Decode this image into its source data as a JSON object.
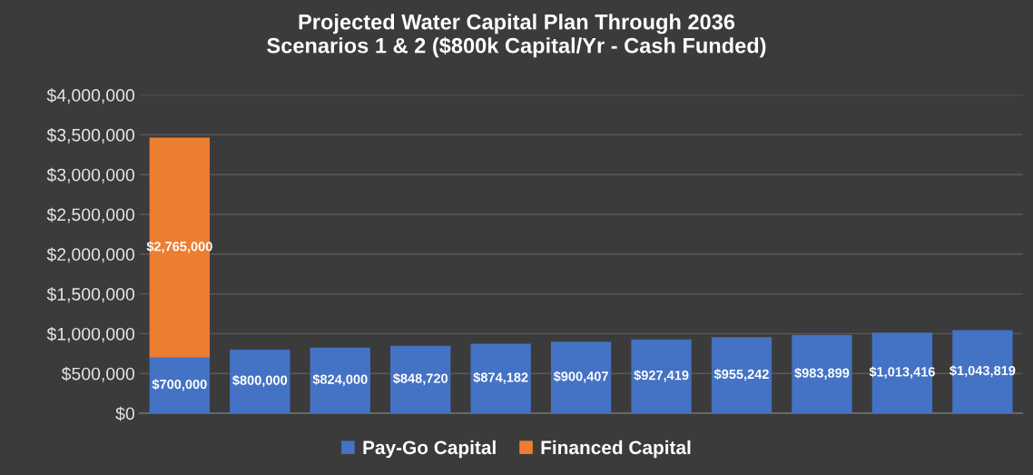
{
  "chart_data": {
    "type": "bar",
    "title": "Projected Water Capital Plan Through 2036\nScenarios 1 & 2 ($800k Capital/Yr - Cash Funded)",
    "categories": [
      null,
      null,
      null,
      null,
      null,
      null,
      null,
      null,
      null,
      null,
      null
    ],
    "stacked": true,
    "series": [
      {
        "name": "Pay-Go Capital",
        "color": "#4472c4",
        "values": [
          700000,
          800000,
          824000,
          848720,
          874182,
          900407,
          927419,
          955242,
          983899,
          1013416,
          1043819
        ],
        "value_labels": [
          "$700,000",
          "$800,000",
          "$824,000",
          "$848,720",
          "$874,182",
          "$900,407",
          "$927,419",
          "$955,242",
          "$983,899",
          "$1,013,416",
          "$1,043,819"
        ]
      },
      {
        "name": "Financed Capital",
        "color": "#ed7d31",
        "values": [
          2765000,
          null,
          null,
          null,
          null,
          null,
          null,
          null,
          null,
          null,
          null
        ],
        "value_labels": [
          "$2,765,000",
          null,
          null,
          null,
          null,
          null,
          null,
          null,
          null,
          null,
          null
        ]
      }
    ],
    "ylim": [
      0,
      4000000
    ],
    "yticks": [
      {
        "value": 0,
        "label": "$0"
      },
      {
        "value": 500000,
        "label": "$500,000"
      },
      {
        "value": 1000000,
        "label": "$1,000,000"
      },
      {
        "value": 1500000,
        "label": "$1,500,000"
      },
      {
        "value": 2000000,
        "label": "$2,000,000"
      },
      {
        "value": 2500000,
        "label": "$2,500,000"
      },
      {
        "value": 3000000,
        "label": "$3,000,000"
      },
      {
        "value": 3500000,
        "label": "$3,500,000"
      },
      {
        "value": 4000000,
        "label": "$4,000,000"
      }
    ],
    "tick_labels": "y",
    "grid": "y",
    "legend": "bottom"
  }
}
